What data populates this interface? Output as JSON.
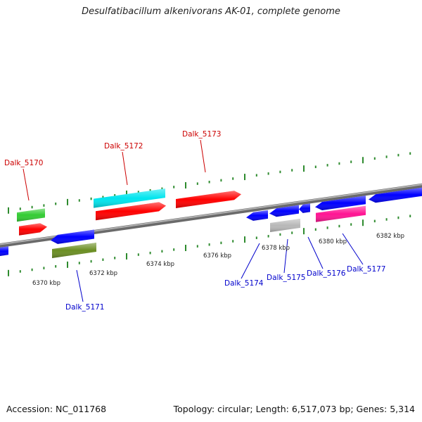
{
  "title": "Desulfatibacillum alkenivorans AK-01, complete genome",
  "footer": {
    "accession": "Accession: NC_011768",
    "summary": "Topology: circular; Length: 6,517,073 bp; Genes: 5,314"
  },
  "colors": {
    "backbone": "#8a8a8a",
    "tick": "#2e8b2e",
    "top_label": "#cc0000",
    "bottom_label": "#0000cc"
  },
  "axis_labels": [
    "6370 kbp",
    "6372 kbp",
    "6374 kbp",
    "6376 kbp",
    "6378 kbp",
    "6380 kbp",
    "6382 kbp"
  ],
  "genes": [
    {
      "label": "Dalk_5170",
      "strand": "plus",
      "color": "#ff0000"
    },
    {
      "label": "Dalk_5171",
      "strand": "minus",
      "color": "#0000ff"
    },
    {
      "label": "Dalk_5172",
      "strand": "plus",
      "color": "#ff0000"
    },
    {
      "label": "Dalk_5173",
      "strand": "plus",
      "color": "#ff0000"
    },
    {
      "label": "Dalk_5174",
      "strand": "minus",
      "color": "#0000ff"
    },
    {
      "label": "Dalk_5175",
      "strand": "minus",
      "color": "#0000ff"
    },
    {
      "label": "Dalk_5176",
      "strand": "minus",
      "color": "#0000ff"
    },
    {
      "label": "Dalk_5177",
      "strand": "minus",
      "color": "#0000ff"
    }
  ],
  "features": [
    {
      "name": "rna-feature-green",
      "color": "#33cc33"
    },
    {
      "name": "rna-feature-cyan",
      "color": "#00e5ee"
    },
    {
      "name": "cds-feature-olive",
      "color": "#6b8e23"
    },
    {
      "name": "cds-feature-gray",
      "color": "#b8b8b8"
    },
    {
      "name": "cds-feature-pink",
      "color": "#ff1493"
    }
  ]
}
